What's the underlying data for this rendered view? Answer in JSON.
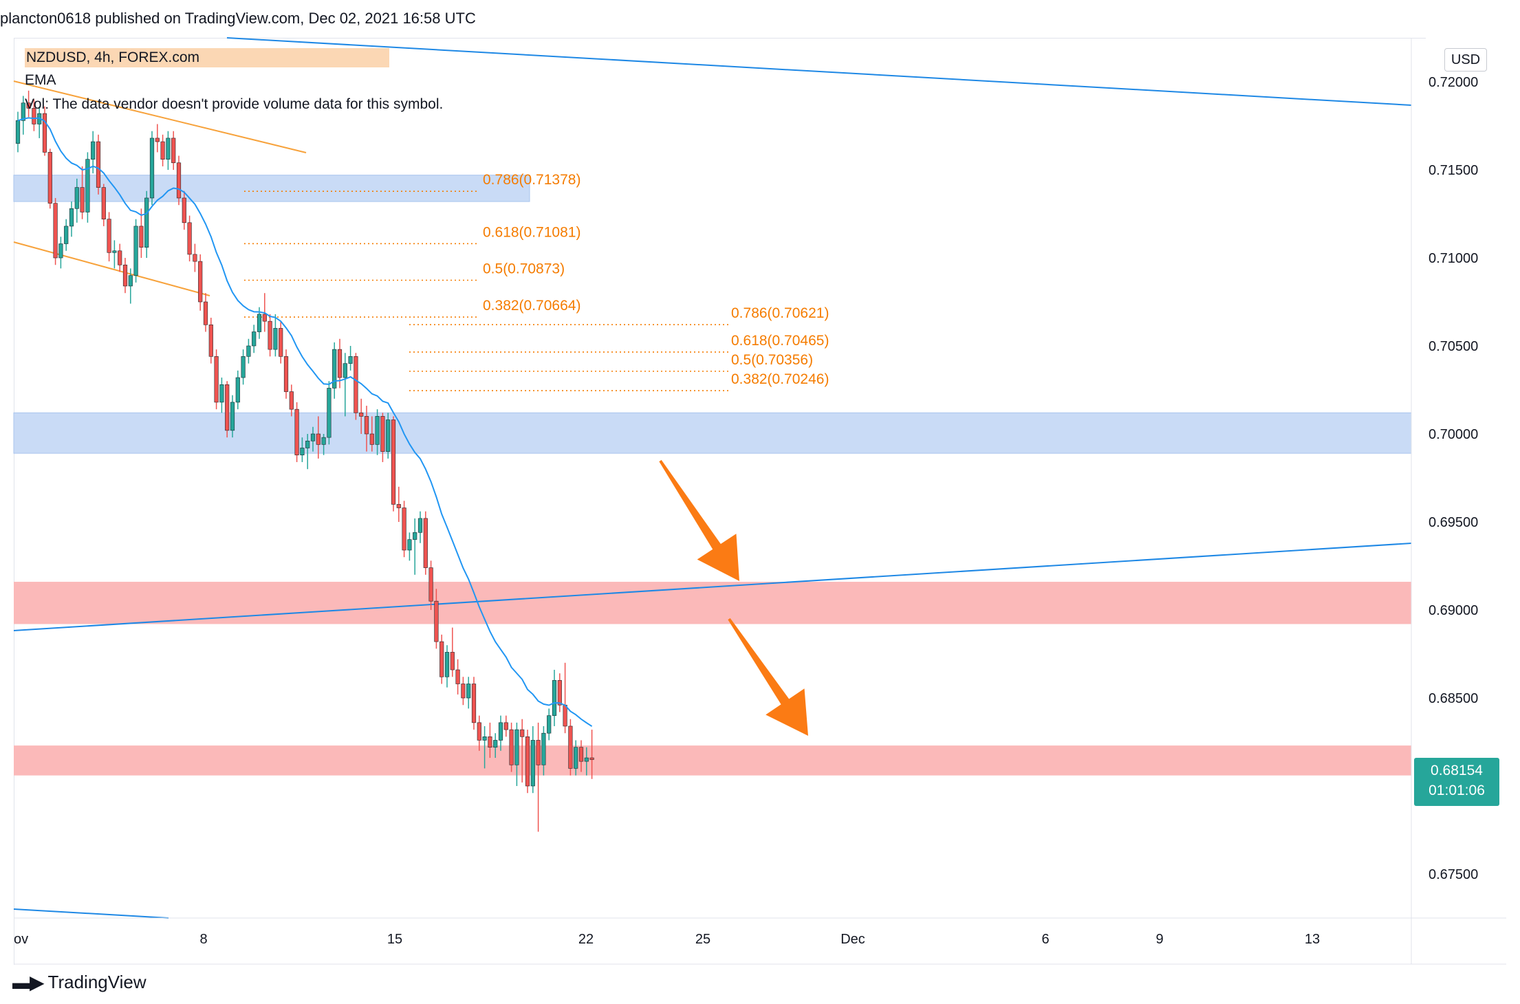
{
  "header": {
    "publisher_line": "plancton0618 published on TradingView.com, Dec 02, 2021 16:58 UTC"
  },
  "legend": {
    "symbol": "NZDUSD, 4h, FOREX.com",
    "ema": "EMA",
    "vol": "Vol",
    "vol_note": "The data vendor doesn't provide volume data for this symbol."
  },
  "price_scale": {
    "currency": "USD",
    "current_price": "0.68154",
    "countdown": "01:01:06",
    "current_color": "#26a69a"
  },
  "footer": {
    "brand": "TradingView"
  },
  "colors": {
    "up": "#26a69a",
    "down": "#ef5350",
    "ema": "#2196f3",
    "fib": "#f57c00",
    "blue_zone": "#c9dbf6",
    "red_zone": "#fbb9b9",
    "trendline": "#1e88e5",
    "channel": "#f7a23b",
    "arrow": "#fb7b14"
  },
  "chart_data": {
    "type": "candlestick",
    "symbol": "NZDUSD",
    "interval": "4h",
    "y_range": [
      0.6725,
      0.7225
    ],
    "y_ticks": [
      "0.72000",
      "0.71500",
      "0.71000",
      "0.70500",
      "0.70000",
      "0.69500",
      "0.69000",
      "0.68500",
      "0.68000",
      "0.67500"
    ],
    "x_ticks": [
      "ov",
      "8",
      "15",
      "22",
      "25",
      "Dec",
      "6",
      "9",
      "13"
    ],
    "fib_levels_1": [
      {
        "label": "0.786(0.71378)",
        "price": 0.71378
      },
      {
        "label": "0.618(0.71081)",
        "price": 0.71081
      },
      {
        "label": "0.5(0.70873)",
        "price": 0.70873
      },
      {
        "label": "0.382(0.70664)",
        "price": 0.70664
      }
    ],
    "fib_levels_2": [
      {
        "label": "0.786(0.70621)",
        "price": 0.70621
      },
      {
        "label": "0.618(0.70465)",
        "price": 0.70465
      },
      {
        "label": "0.5(0.70356)",
        "price": 0.70356
      },
      {
        "label": "0.382(0.70246)",
        "price": 0.70246
      }
    ],
    "zones": [
      {
        "kind": "supply",
        "top": 0.7147,
        "bottom": 0.7132
      },
      {
        "kind": "supply",
        "top": 0.7012,
        "bottom": 0.6989
      },
      {
        "kind": "demand",
        "top": 0.6916,
        "bottom": 0.6892
      },
      {
        "kind": "demand",
        "top": 0.6823,
        "bottom": 0.6806
      }
    ],
    "candles": [
      [
        0.7165,
        0.7183,
        0.716,
        0.7178
      ],
      [
        0.7178,
        0.7192,
        0.717,
        0.7188
      ],
      [
        0.7188,
        0.7195,
        0.718,
        0.7185
      ],
      [
        0.7185,
        0.719,
        0.7172,
        0.7176
      ],
      [
        0.7176,
        0.7186,
        0.7168,
        0.7182
      ],
      [
        0.7182,
        0.7186,
        0.7158,
        0.716
      ],
      [
        0.716,
        0.7162,
        0.7128,
        0.7131
      ],
      [
        0.7131,
        0.7134,
        0.7096,
        0.71
      ],
      [
        0.71,
        0.7112,
        0.7094,
        0.7108
      ],
      [
        0.7108,
        0.7122,
        0.7104,
        0.7118
      ],
      [
        0.7118,
        0.7132,
        0.7112,
        0.7128
      ],
      [
        0.7128,
        0.7145,
        0.712,
        0.714
      ],
      [
        0.714,
        0.7152,
        0.7122,
        0.7126
      ],
      [
        0.7126,
        0.716,
        0.712,
        0.7156
      ],
      [
        0.7156,
        0.7172,
        0.7148,
        0.7166
      ],
      [
        0.7166,
        0.717,
        0.7136,
        0.714
      ],
      [
        0.714,
        0.7142,
        0.7118,
        0.7122
      ],
      [
        0.7122,
        0.7126,
        0.7098,
        0.7103
      ],
      [
        0.7103,
        0.711,
        0.7094,
        0.7104
      ],
      [
        0.7104,
        0.7108,
        0.7092,
        0.7096
      ],
      [
        0.7096,
        0.71,
        0.708,
        0.7084
      ],
      [
        0.7084,
        0.7094,
        0.7074,
        0.709
      ],
      [
        0.709,
        0.7122,
        0.7086,
        0.7118
      ],
      [
        0.7118,
        0.7128,
        0.71,
        0.7106
      ],
      [
        0.7106,
        0.7138,
        0.71,
        0.7134
      ],
      [
        0.7134,
        0.7172,
        0.713,
        0.7168
      ],
      [
        0.7168,
        0.7176,
        0.716,
        0.7166
      ],
      [
        0.7166,
        0.717,
        0.7152,
        0.7156
      ],
      [
        0.7156,
        0.7172,
        0.715,
        0.7168
      ],
      [
        0.7168,
        0.7172,
        0.715,
        0.7154
      ],
      [
        0.7154,
        0.7158,
        0.713,
        0.7134
      ],
      [
        0.7134,
        0.7138,
        0.7116,
        0.712
      ],
      [
        0.712,
        0.7124,
        0.7098,
        0.7102
      ],
      [
        0.7102,
        0.7108,
        0.7092,
        0.7098
      ],
      [
        0.7098,
        0.7102,
        0.707,
        0.7075
      ],
      [
        0.7075,
        0.708,
        0.7058,
        0.7062
      ],
      [
        0.7062,
        0.7066,
        0.704,
        0.7044
      ],
      [
        0.7044,
        0.7048,
        0.7014,
        0.7018
      ],
      [
        0.7018,
        0.7032,
        0.7012,
        0.7028
      ],
      [
        0.7028,
        0.703,
        0.6998,
        0.7002
      ],
      [
        0.7002,
        0.7022,
        0.6998,
        0.7018
      ],
      [
        0.7018,
        0.7036,
        0.7014,
        0.7032
      ],
      [
        0.7032,
        0.7048,
        0.7028,
        0.7044
      ],
      [
        0.7044,
        0.7054,
        0.704,
        0.705
      ],
      [
        0.705,
        0.7062,
        0.7046,
        0.7058
      ],
      [
        0.7058,
        0.7072,
        0.7054,
        0.7068
      ],
      [
        0.7068,
        0.708,
        0.7058,
        0.7064
      ],
      [
        0.7064,
        0.7068,
        0.7044,
        0.7048
      ],
      [
        0.7048,
        0.7068,
        0.7044,
        0.706
      ],
      [
        0.706,
        0.7064,
        0.704,
        0.7044
      ],
      [
        0.7044,
        0.7048,
        0.702,
        0.7024
      ],
      [
        0.7024,
        0.7028,
        0.701,
        0.7014
      ],
      [
        0.7014,
        0.7018,
        0.6984,
        0.6988
      ],
      [
        0.6988,
        0.6998,
        0.6984,
        0.6992
      ],
      [
        0.6992,
        0.7,
        0.698,
        0.6996
      ],
      [
        0.6996,
        0.7004,
        0.699,
        0.7
      ],
      [
        0.7,
        0.701,
        0.6986,
        0.6994
      ],
      [
        0.6994,
        0.7,
        0.6988,
        0.6998
      ],
      [
        0.6998,
        0.703,
        0.6994,
        0.7026
      ],
      [
        0.7026,
        0.7052,
        0.702,
        0.7048
      ],
      [
        0.7048,
        0.7054,
        0.7026,
        0.7032
      ],
      [
        0.7032,
        0.7046,
        0.701,
        0.704
      ],
      [
        0.704,
        0.705,
        0.7036,
        0.7044
      ],
      [
        0.7044,
        0.7046,
        0.7008,
        0.7012
      ],
      [
        0.7012,
        0.702,
        0.7,
        0.701
      ],
      [
        0.701,
        0.7016,
        0.699,
        0.7
      ],
      [
        0.7,
        0.701,
        0.699,
        0.6994
      ],
      [
        0.6994,
        0.7014,
        0.6988,
        0.701
      ],
      [
        0.701,
        0.7012,
        0.6984,
        0.699
      ],
      [
        0.699,
        0.7012,
        0.6986,
        0.7008
      ],
      [
        0.7008,
        0.701,
        0.6956,
        0.696
      ],
      [
        0.696,
        0.697,
        0.695,
        0.6958
      ],
      [
        0.6958,
        0.6962,
        0.693,
        0.6934
      ],
      [
        0.6934,
        0.6944,
        0.6928,
        0.694
      ],
      [
        0.694,
        0.6952,
        0.692,
        0.6944
      ],
      [
        0.6944,
        0.6956,
        0.6938,
        0.6952
      ],
      [
        0.6952,
        0.6956,
        0.692,
        0.6924
      ],
      [
        0.6924,
        0.6928,
        0.69,
        0.6905
      ],
      [
        0.6905,
        0.6912,
        0.6878,
        0.6882
      ],
      [
        0.6882,
        0.6886,
        0.6858,
        0.6862
      ],
      [
        0.6862,
        0.688,
        0.6856,
        0.6876
      ],
      [
        0.6876,
        0.689,
        0.6862,
        0.6866
      ],
      [
        0.6866,
        0.6872,
        0.6852,
        0.6858
      ],
      [
        0.6858,
        0.6862,
        0.6846,
        0.685
      ],
      [
        0.685,
        0.6862,
        0.6844,
        0.6858
      ],
      [
        0.6858,
        0.6862,
        0.6832,
        0.6836
      ],
      [
        0.6836,
        0.684,
        0.682,
        0.6826
      ],
      [
        0.6826,
        0.6834,
        0.681,
        0.6828
      ],
      [
        0.6828,
        0.6836,
        0.6816,
        0.6822
      ],
      [
        0.6822,
        0.683,
        0.6816,
        0.6826
      ],
      [
        0.6826,
        0.684,
        0.682,
        0.6836
      ],
      [
        0.6836,
        0.684,
        0.6828,
        0.6832
      ],
      [
        0.6832,
        0.6836,
        0.6808,
        0.6812
      ],
      [
        0.6812,
        0.6836,
        0.68,
        0.6832
      ],
      [
        0.6832,
        0.6838,
        0.6802,
        0.6828
      ],
      [
        0.6828,
        0.6832,
        0.6796,
        0.68
      ],
      [
        0.68,
        0.6834,
        0.6796,
        0.6826
      ],
      [
        0.6826,
        0.6836,
        0.6774,
        0.6812
      ],
      [
        0.6812,
        0.6834,
        0.6806,
        0.683
      ],
      [
        0.683,
        0.6844,
        0.6826,
        0.684
      ],
      [
        0.684,
        0.6866,
        0.6834,
        0.686
      ],
      [
        0.686,
        0.6864,
        0.6842,
        0.6846
      ],
      [
        0.6846,
        0.687,
        0.683,
        0.6834
      ],
      [
        0.6834,
        0.6838,
        0.6806,
        0.681
      ],
      [
        0.681,
        0.6826,
        0.6806,
        0.6822
      ],
      [
        0.6822,
        0.6826,
        0.6808,
        0.6814
      ],
      [
        0.6814,
        0.6822,
        0.6806,
        0.6816
      ],
      [
        0.6816,
        0.6832,
        0.6804,
        0.6815
      ]
    ]
  }
}
